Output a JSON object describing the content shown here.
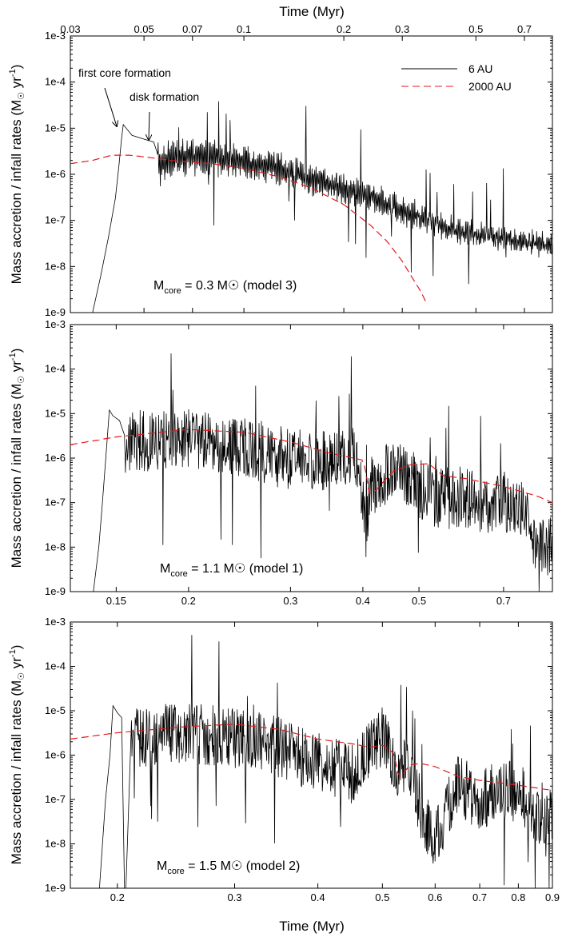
{
  "figure": {
    "top_axis_label": "Time (Myr)",
    "bottom_axis_label": "Time (Myr)",
    "ylabel": "Mass accretion / infall rates",
    "ylabel_unit_prefix": "(M",
    "ylabel_unit_sun": "☉",
    "ylabel_unit_yr": " yr",
    "ylabel_unit_exp": "-1",
    "ylabel_unit_close": ")",
    "legend": [
      {
        "label": "6 AU",
        "color": "#000000",
        "dash": "solid"
      },
      {
        "label": "2000 AU",
        "color": "#e41a1c",
        "dash": "dashed"
      }
    ],
    "y_tick_labels": [
      "1e-9",
      "1e-8",
      "1e-7",
      "1e-6",
      "1e-5",
      "1e-4",
      "1e-3"
    ],
    "annotations": {
      "first_core": "first core formation",
      "disk": "disk formation"
    }
  },
  "panels": [
    {
      "label_prefix": "M",
      "label_sub": "core",
      "label_mid": " = 0.3 M",
      "label_sun": "☉",
      "label_suffix": " (model 3)"
    },
    {
      "label_prefix": "M",
      "label_sub": "core",
      "label_mid": " = 1.1 M",
      "label_sun": "☉",
      "label_suffix": " (model 1)"
    },
    {
      "label_prefix": "M",
      "label_sub": "core",
      "label_mid": " = 1.5 M",
      "label_sun": "☉",
      "label_suffix": " (model 2)"
    }
  ],
  "chart_data": [
    {
      "type": "line",
      "title": "Mcore = 0.3 Msun (model 3)",
      "xscale": "log",
      "xlim": [
        0.03,
        0.85
      ],
      "ylim": [
        1e-09,
        0.001
      ],
      "yscale": "log",
      "xlabel": "Time (Myr)",
      "ylabel": "Mass accretion / infall rates (Msun yr^-1)",
      "x_tick_labels": [
        "0.03",
        "0.05",
        "0.07",
        "0.1",
        "0.2",
        "0.3",
        "0.5",
        "0.7"
      ],
      "x_ticks": [
        0.03,
        0.05,
        0.07,
        0.1,
        0.2,
        0.3,
        0.5,
        0.7
      ],
      "series": [
        {
          "name": "6 AU",
          "x": [
            0.035,
            0.037,
            0.039,
            0.041,
            0.042,
            0.0428,
            0.0433,
            0.046,
            0.05,
            0.0535,
            0.056,
            0.06,
            0.065,
            0.07,
            0.08,
            0.09,
            0.1,
            0.12,
            0.15,
            0.2,
            0.25,
            0.3,
            0.35,
            0.4,
            0.5,
            0.6,
            0.7,
            0.8,
            0.85
          ],
          "y": [
            1e-09,
            6e-09,
            4e-08,
            3e-07,
            1.5e-06,
            6e-06,
            1.2e-05,
            7e-06,
            5.8e-06,
            5e-06,
            1.4e-06,
            2.4e-06,
            2.3e-06,
            2.4e-06,
            2.3e-06,
            2.1e-06,
            1.9e-06,
            1.5e-06,
            9e-07,
            5e-07,
            3e-07,
            1.7e-07,
            1.1e-07,
            7e-08,
            5e-08,
            4.2e-08,
            3.5e-08,
            3e-08,
            2.8e-08
          ],
          "noise": {
            "start": 0.055,
            "amplitude_dex": 0.5,
            "spikes_dex": 0.9,
            "jitter": "oscillation"
          }
        },
        {
          "name": "2000 AU",
          "x": [
            0.03,
            0.035,
            0.04,
            0.045,
            0.05,
            0.06,
            0.08,
            0.1,
            0.13,
            0.16,
            0.2,
            0.24,
            0.27,
            0.3,
            0.32,
            0.34,
            0.355
          ],
          "y": [
            1.7e-06,
            2e-06,
            2.6e-06,
            2.6e-06,
            2.4e-06,
            2e-06,
            1.7e-06,
            1.35e-06,
            8.5e-07,
            5e-07,
            2.2e-07,
            8e-08,
            3.5e-08,
            1.3e-08,
            6e-09,
            3e-09,
            1.6e-09
          ]
        }
      ]
    },
    {
      "type": "line",
      "title": "Mcore = 1.1 Msun (model 1)",
      "xscale": "log",
      "xlim": [
        0.125,
        0.85
      ],
      "ylim": [
        1e-09,
        0.001
      ],
      "yscale": "log",
      "xlabel": "Time (Myr)",
      "ylabel": "Mass accretion / infall rates (Msun yr^-1)",
      "x_tick_labels": [
        "0.15",
        "0.2",
        "0.3",
        "0.4",
        "0.5",
        "0.7"
      ],
      "x_ticks": [
        0.15,
        0.2,
        0.3,
        0.4,
        0.5,
        0.7
      ],
      "series": [
        {
          "name": "6 AU",
          "x": [
            0.137,
            0.14,
            0.142,
            0.144,
            0.146,
            0.148,
            0.152,
            0.155,
            0.16,
            0.2,
            0.25,
            0.3,
            0.35,
            0.39,
            0.405,
            0.41,
            0.43,
            0.45,
            0.47,
            0.5,
            0.55,
            0.6,
            0.65,
            0.7,
            0.75,
            0.78,
            0.8,
            0.85
          ],
          "y": [
            1e-09,
            1e-08,
            1e-07,
            1.1e-06,
            1.2e-05,
            9e-06,
            7e-06,
            1.5e-06,
            2.5e-06,
            2.5e-06,
            1.8e-06,
            9e-07,
            9e-07,
            1e-06,
            2e-08,
            2e-07,
            3e-07,
            6e-07,
            5e-07,
            2e-07,
            1.2e-07,
            1.4e-07,
            1e-07,
            1e-07,
            8e-08,
            3e-08,
            1e-08,
            1.2e-08
          ],
          "noise": {
            "start": 0.155,
            "amplitude_dex": 0.7,
            "spikes_dex": 1.3,
            "jitter": "random"
          }
        },
        {
          "name": "2000 AU",
          "x": [
            0.125,
            0.15,
            0.2,
            0.25,
            0.3,
            0.35,
            0.4,
            0.405,
            0.41,
            0.42,
            0.45,
            0.48,
            0.52,
            0.55,
            0.6,
            0.7,
            0.8,
            0.85
          ],
          "y": [
            2e-06,
            3e-06,
            4.4e-06,
            3.8e-06,
            2.3e-06,
            1.3e-06,
            9e-07,
            5e-07,
            1.6e-07,
            1.8e-07,
            5e-07,
            7e-07,
            7.5e-07,
            4e-07,
            3.5e-07,
            2.3e-07,
            1.4e-07,
            1e-07
          ]
        }
      ]
    },
    {
      "type": "line",
      "title": "Mcore = 1.5 Msun (model 2)",
      "xscale": "log",
      "xlim": [
        0.17,
        0.9
      ],
      "ylim": [
        1e-09,
        0.001
      ],
      "yscale": "log",
      "xlabel": "Time (Myr)",
      "ylabel": "Mass accretion / infall rates (Msun yr^-1)",
      "x_tick_labels": [
        "0.2",
        "0.3",
        "0.4",
        "0.5",
        "0.6",
        "0.7",
        "0.8",
        "0.9"
      ],
      "x_ticks": [
        0.2,
        0.3,
        0.4,
        0.5,
        0.6,
        0.7,
        0.8,
        0.9
      ],
      "series": [
        {
          "name": "6 AU",
          "x": [
            0.188,
            0.19,
            0.192,
            0.195,
            0.197,
            0.2,
            0.203,
            0.205,
            0.206,
            0.21,
            0.25,
            0.3,
            0.35,
            0.4,
            0.45,
            0.5,
            0.52,
            0.55,
            0.58,
            0.6,
            0.65,
            0.7,
            0.75,
            0.8,
            0.85,
            0.9
          ],
          "y": [
            1e-09,
            1e-08,
            1e-07,
            1e-06,
            1.3e-05,
            9e-06,
            7e-06,
            1e-09,
            1e-09,
            2.5e-06,
            3e-06,
            2.5e-06,
            1.5e-06,
            7e-07,
            4e-07,
            3e-06,
            6e-07,
            4e-07,
            3e-08,
            1.5e-08,
            2e-07,
            1e-07,
            1.5e-07,
            1.5e-07,
            5e-08,
            5e-08
          ],
          "noise": {
            "start": 0.21,
            "amplitude_dex": 0.7,
            "spikes_dex": 1.3,
            "jitter": "random"
          }
        },
        {
          "name": "2000 AU",
          "x": [
            0.17,
            0.2,
            0.25,
            0.3,
            0.35,
            0.4,
            0.45,
            0.48,
            0.5,
            0.52,
            0.53,
            0.55,
            0.57,
            0.6,
            0.65,
            0.7,
            0.8,
            0.9
          ],
          "y": [
            2.3e-06,
            3.2e-06,
            4.3e-06,
            5e-06,
            3.8e-06,
            2.3e-06,
            1.8e-06,
            1.5e-06,
            1.7e-06,
            1.1e-06,
            3e-07,
            6e-07,
            6.5e-07,
            5.5e-07,
            3.3e-07,
            2.7e-07,
            2.1e-07,
            1.6e-07
          ]
        }
      ]
    }
  ]
}
